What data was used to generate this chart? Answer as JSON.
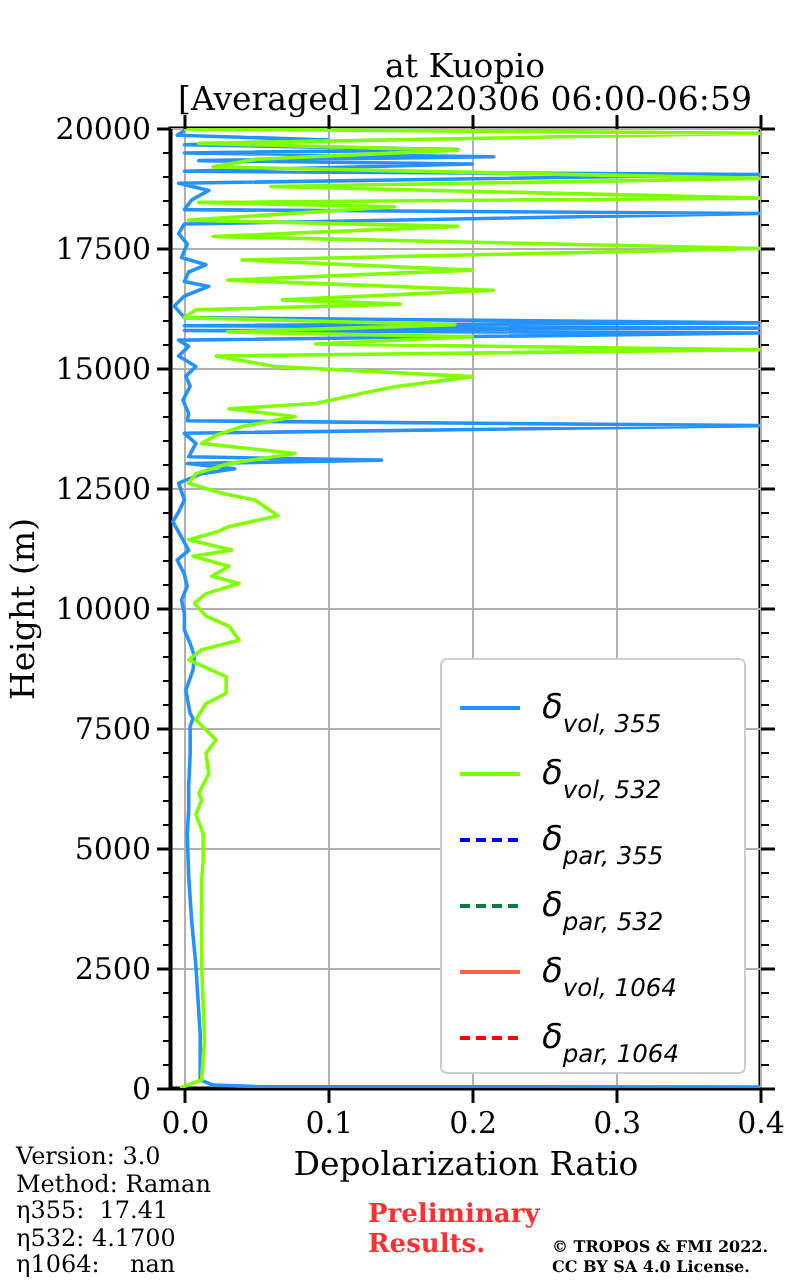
{
  "chart_data": {
    "type": "line",
    "title": "at Kuopio",
    "subtitle": "[Averaged] 20220306 06:00-06:59",
    "xlabel": "Depolarization Ratio",
    "ylabel": "Height (m)",
    "annotations": [
      "Version: 3.0",
      "Method: Raman",
      "η355:  17.41",
      "η532: 4.1700",
      "η1064:    nan",
      "Preliminary Results.",
      "© TROPOS & FMI 2022.",
      "CC BY SA 4.0 License."
    ],
    "xlim": [
      -0.01,
      0.4
    ],
    "xticks": [
      {
        "value": 0,
        "label": "0.0"
      },
      0.1,
      0.2,
      0.3,
      0.4
    ],
    "ylim": [
      0,
      20000
    ],
    "yticks": [
      0,
      {
        "value": 500,
        "label": null
      },
      {
        "value": 1000,
        "label": null
      },
      {
        "value": 1500,
        "label": null
      },
      {
        "value": 2000,
        "label": null
      },
      2500,
      {
        "value": 3000,
        "label": null
      },
      {
        "value": 3500,
        "label": null
      },
      {
        "value": 4000,
        "label": null
      },
      {
        "value": 4500,
        "label": null
      },
      5000,
      {
        "value": 5500,
        "label": null
      },
      {
        "value": 6000,
        "label": null
      },
      {
        "value": 6500,
        "label": null
      },
      {
        "value": 7000,
        "label": null
      },
      7500,
      {
        "value": 8000,
        "label": null
      },
      {
        "value": 8500,
        "label": null
      },
      {
        "value": 9000,
        "label": null
      },
      {
        "value": 9500,
        "label": null
      },
      10000,
      {
        "value": 10500,
        "label": null
      },
      {
        "value": 11000,
        "label": null
      },
      {
        "value": 11500,
        "label": null
      },
      {
        "value": 12000,
        "label": null
      },
      12500,
      {
        "value": 13000,
        "label": null
      },
      {
        "value": 13500,
        "label": null
      },
      {
        "value": 14000,
        "label": null
      },
      {
        "value": 14500,
        "label": null
      },
      15000,
      {
        "value": 15500,
        "label": null
      },
      {
        "value": 16000,
        "label": null
      },
      {
        "value": 16500,
        "label": null
      },
      {
        "value": 17000,
        "label": null
      },
      17500,
      {
        "value": 18000,
        "label": null
      },
      {
        "value": 18500,
        "label": null
      },
      {
        "value": 19000,
        "label": null
      },
      {
        "value": 19500,
        "label": null
      },
      20000
    ],
    "grid": true,
    "legend": "bottom right",
    "series": [
      {
        "name": "δ$_{vol, 355}$",
        "color": "#2492ff",
        "line_style": "solid",
        "x": [
          0.4,
          0.05,
          0.02,
          0.011,
          0.011,
          0.008,
          0.005,
          0.003,
          0.002,
          0.003,
          0.003,
          0.004,
          0.004,
          0.006,
          0.004,
          0.001,
          0.006,
          0.007,
          0.004,
          0.0,
          0.0,
          -0.002,
          0.002,
          0.0,
          -0.005,
          0.003,
          -0.001,
          -0.008,
          -0.004,
          0.0,
          -0.004,
          0.012,
          0.035,
          0.002,
          0.137,
          0.003,
          0.008,
          0.0,
          0.4,
          0.002,
          0.003,
          -0.001,
          0.004,
          0.001,
          0.008,
          -0.004,
          0.003,
          -0.004,
          0.4,
          0.0,
          0.4,
          0.0,
          0.4,
          0.0,
          -0.007,
          0.0,
          0.017,
          0.0,
          0.003,
          0.015,
          -0.002,
          0.002,
          -0.004,
          0.0,
          0.4,
          0.0,
          0.005,
          0.017,
          -0.004,
          0.4,
          0.0,
          0.2,
          0.01,
          0.215,
          0.0,
          0.19,
          0.0,
          0.1,
          -0.005,
          0.0
        ],
        "values": [
          20,
          30,
          60,
          170,
          1100,
          2550,
          3500,
          4400,
          5300,
          5800,
          6300,
          6970,
          7540,
          7700,
          7800,
          8290,
          8710,
          9000,
          9260,
          9540,
          9890,
          10170,
          10450,
          10700,
          11000,
          11200,
          11420,
          11800,
          12000,
          12250,
          12600,
          12800,
          12900,
          13010,
          13080,
          13150,
          13430,
          13640,
          13800,
          13900,
          14050,
          14330,
          14620,
          14830,
          15030,
          15250,
          15450,
          15580,
          15730,
          15780,
          15830,
          15880,
          15940,
          16050,
          16290,
          16500,
          16700,
          16800,
          17000,
          17150,
          17300,
          17580,
          17800,
          18000,
          18220,
          18300,
          18500,
          18700,
          18850,
          19030,
          19100,
          19250,
          19320,
          19400,
          19480,
          19550,
          19650,
          19750,
          19850,
          19950
        ]
      },
      {
        "name": "δ$_{vol, 532}$",
        "color": "#80ff00",
        "line_style": "solid",
        "x": [
          -0.003,
          0.012,
          0.014,
          0.012,
          0.012,
          0.012,
          0.013,
          0.013,
          0.008,
          0.012,
          0.01,
          0.017,
          0.015,
          0.022,
          0.008,
          0.015,
          0.029,
          0.029,
          0.003,
          0.012,
          0.038,
          0.031,
          0.015,
          0.007,
          0.015,
          0.038,
          0.019,
          0.031,
          0.006,
          0.033,
          0.003,
          0.024,
          0.031,
          0.065,
          0.049,
          0.026,
          0.003,
          0.008,
          0.031,
          0.077,
          0.012,
          0.022,
          0.04,
          0.077,
          0.031,
          0.091,
          0.123,
          0.146,
          0.2,
          0.063,
          0.022,
          0.4,
          0.091,
          0.2,
          0.03,
          0.188,
          0.0,
          0.008,
          0.15,
          0.068,
          0.215,
          0.03,
          0.2,
          0.04,
          0.4,
          0.02,
          0.19,
          0.003,
          0.146,
          0.01,
          0.4,
          0.06,
          0.4,
          0.02,
          0.05,
          0.19,
          0.01,
          0.4,
          0.0
        ],
        "values": [
          0,
          170,
          1000,
          2540,
          3500,
          4330,
          4700,
          5300,
          5700,
          6000,
          6140,
          6550,
          6970,
          7250,
          7670,
          8010,
          8220,
          8570,
          8920,
          9130,
          9330,
          9620,
          9830,
          10100,
          10300,
          10510,
          10660,
          10870,
          11080,
          11210,
          11420,
          11600,
          11700,
          11920,
          12250,
          12390,
          12600,
          12800,
          13010,
          13220,
          13430,
          13600,
          13780,
          13990,
          14150,
          14260,
          14470,
          14610,
          14820,
          15030,
          15250,
          15380,
          15500,
          15650,
          15750,
          15900,
          16050,
          16210,
          16330,
          16420,
          16620,
          16830,
          17040,
          17250,
          17490,
          17740,
          17950,
          18080,
          18360,
          18450,
          18540,
          18780,
          18950,
          19190,
          19350,
          19540,
          19680,
          19890,
          19980
        ]
      },
      {
        "name": "δ$_{par, 355}$",
        "color": "#0000ff",
        "line_style": "dashed"
      },
      {
        "name": "δ$_{par, 532}$",
        "color": "#008040",
        "line_style": "dashed"
      },
      {
        "name": "δ$_{vol, 1064}$",
        "color": "#ff6347",
        "line_style": "solid"
      },
      {
        "name": "δ$_{par, 1064}$",
        "color": "#ff0000",
        "line_style": "dashed"
      }
    ]
  }
}
